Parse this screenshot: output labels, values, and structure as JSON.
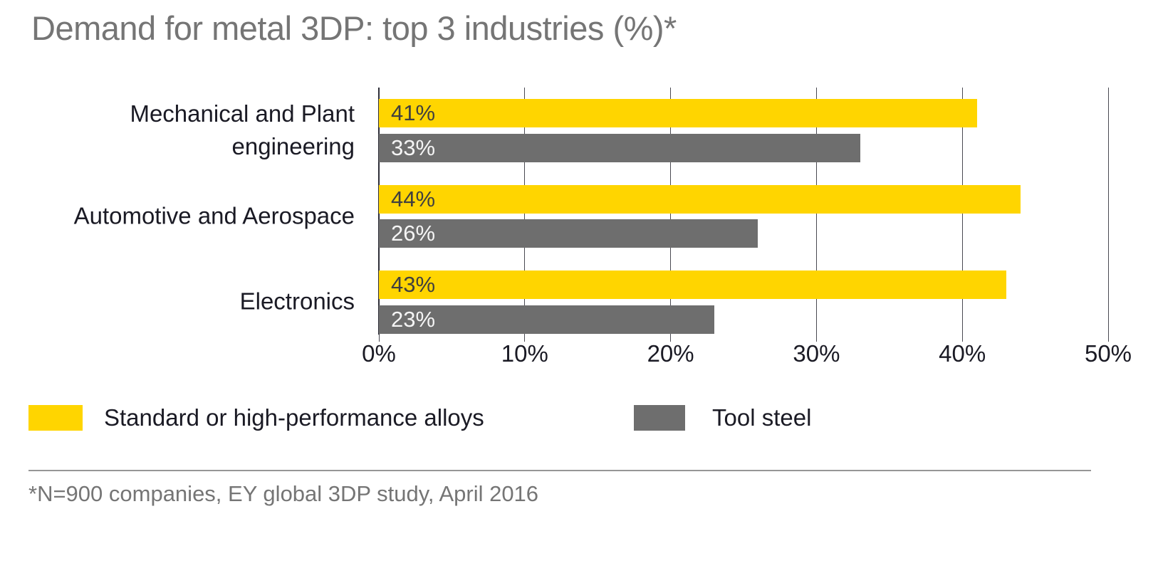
{
  "title": "Demand for metal 3DP: top 3 industries (%)*",
  "footnote": "*N=900 companies, EY global 3DP study, April 2016",
  "colors": {
    "background": "#FFFFFF",
    "title_text": "#757575",
    "category_text": "#1A1A24",
    "tick_text": "#1A1A24",
    "grid_line": "#4A4A52",
    "axis_line": "#2E2E38",
    "divider": "#969696",
    "footnote_text": "#757575",
    "alloys_yellow": "#FFD500",
    "tool_steel_gray": "#6E6E6E"
  },
  "chart_data": {
    "type": "bar",
    "orientation": "horizontal",
    "title": "Demand for metal 3DP: top 3 industries (%)*",
    "categories": [
      "Mechanical and Plant engineering",
      "Automotive and Aerospace",
      "Electronics"
    ],
    "category_label_lines": [
      [
        "Mechanical and Plant",
        "engineering"
      ],
      [
        "Automotive and Aerospace"
      ],
      [
        "Electronics"
      ]
    ],
    "series": [
      {
        "name": "Standard or high-performance alloys",
        "color": "#FFD500",
        "value_color": "#3F3F3F",
        "values": [
          41,
          44,
          43
        ]
      },
      {
        "name": "Tool steel",
        "color": "#6E6E6E",
        "value_color": "#F5F5F5",
        "values": [
          33,
          26,
          23
        ]
      }
    ],
    "value_suffix": "%",
    "xlim": [
      0,
      50
    ],
    "x_ticks": [
      "0%",
      "10%",
      "20%",
      "30%",
      "40%",
      "50%"
    ],
    "grid": true,
    "legend_position": "bottom-left"
  },
  "legend": {
    "items": [
      {
        "label": "Standard or high-performance alloys",
        "color": "#FFD500"
      },
      {
        "label": "Tool steel",
        "color": "#6E6E6E"
      }
    ]
  }
}
